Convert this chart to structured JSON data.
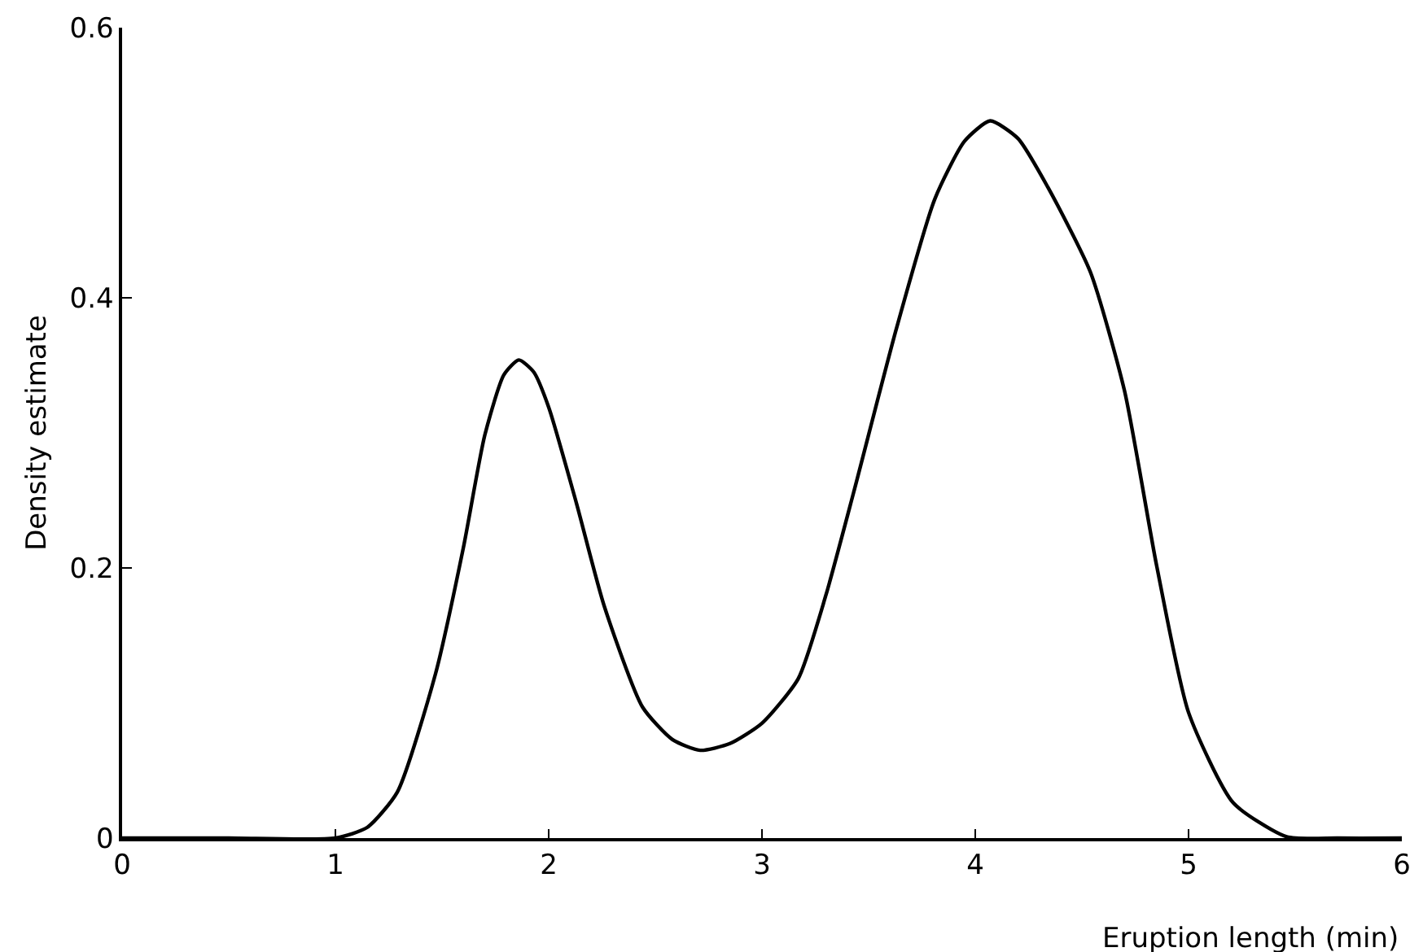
{
  "chart_data": {
    "type": "line",
    "xlabel": "Eruption length (min)",
    "ylabel": "Density estimate",
    "x": [
      0,
      0.5,
      1.0,
      1.15,
      1.29,
      1.47,
      1.6,
      1.7,
      1.79,
      1.86,
      1.93,
      2.0,
      2.13,
      2.26,
      2.44,
      2.58,
      2.71,
      2.85,
      3.0,
      3.17,
      3.3,
      3.43,
      3.63,
      3.81,
      3.95,
      4.07,
      4.2,
      4.34,
      4.54,
      4.7,
      4.85,
      5.0,
      5.21,
      5.46,
      5.7,
      6.0
    ],
    "series": [
      {
        "color": "#000000",
        "values": [
          0,
          0,
          0,
          0.008,
          0.034,
          0.122,
          0.215,
          0.298,
          0.343,
          0.354,
          0.345,
          0.319,
          0.248,
          0.172,
          0.097,
          0.073,
          0.065,
          0.07,
          0.085,
          0.118,
          0.18,
          0.256,
          0.377,
          0.473,
          0.516,
          0.531,
          0.518,
          0.482,
          0.419,
          0.331,
          0.202,
          0.093,
          0.026,
          0.001,
          0,
          0
        ]
      }
    ],
    "xlim": [
      0,
      6
    ],
    "xticks": [
      0,
      1,
      2,
      3,
      4,
      5,
      6
    ],
    "ylim": [
      0,
      0.6
    ],
    "yticks": [
      0,
      0.2,
      0.4,
      0.6
    ],
    "marker": "none",
    "line_style": "solid"
  }
}
